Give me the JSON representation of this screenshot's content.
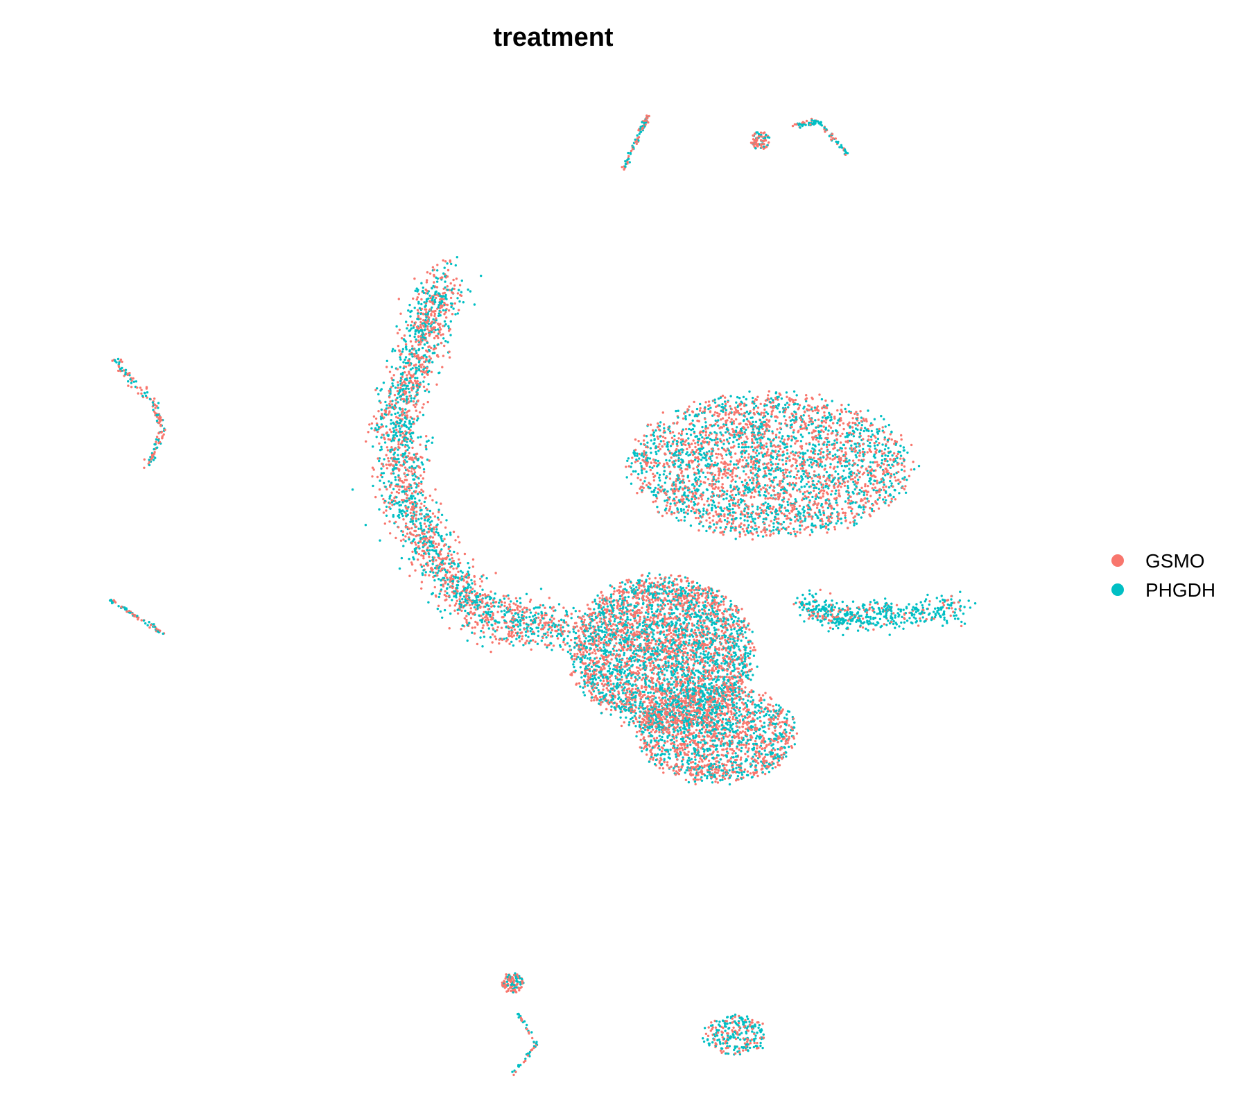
{
  "chart_data": {
    "type": "scatter",
    "title": "treatment",
    "xlabel": "",
    "ylabel": "",
    "axes_visible": false,
    "grid": false,
    "legend_position": "right",
    "xlim": [
      -10,
      10
    ],
    "ylim": [
      -10,
      10
    ],
    "series": [
      {
        "name": "GSMO",
        "color": "#F8766D"
      },
      {
        "name": "PHGDH",
        "color": "#00BFC4"
      }
    ],
    "clusters": [
      {
        "id": "crescent",
        "type": "curve",
        "points": [
          [
            -2.2,
            6.2
          ],
          [
            -2.7,
            4.8
          ],
          [
            -3.2,
            3.2
          ],
          [
            -3.0,
            1.6
          ],
          [
            -2.3,
            0.2
          ],
          [
            -1.3,
            -0.9
          ],
          [
            0.4,
            -1.1
          ]
        ],
        "spread": 0.5,
        "count": 2400,
        "mix": 0.5
      },
      {
        "id": "central-mass",
        "type": "blob",
        "center": [
          2.3,
          -1.6
        ],
        "radius": [
          2.0,
          1.7
        ],
        "count": 3800,
        "mix": 0.52
      },
      {
        "id": "lower-lobe",
        "type": "blob",
        "center": [
          3.4,
          -3.3
        ],
        "radius": [
          1.7,
          1.1
        ],
        "count": 1800,
        "mix": 0.55
      },
      {
        "id": "right-plateau",
        "type": "blob",
        "center": [
          4.5,
          2.3
        ],
        "radius": [
          3.1,
          1.6
        ],
        "count": 3200,
        "mix": 0.5
      },
      {
        "id": "right-arm",
        "type": "curve",
        "points": [
          [
            5.2,
            -0.6
          ],
          [
            6.0,
            -0.9
          ],
          [
            7.0,
            -0.8
          ],
          [
            8.5,
            -0.7
          ]
        ],
        "spread": 0.3,
        "count": 520,
        "mix": 0.2
      },
      {
        "id": "top-streak-1",
        "type": "curve",
        "points": [
          [
            1.5,
            8.5
          ],
          [
            1.8,
            9.2
          ],
          [
            2.0,
            9.6
          ]
        ],
        "spread": 0.05,
        "count": 90,
        "mix": 0.5
      },
      {
        "id": "top-cluster-2",
        "type": "blob",
        "center": [
          4.3,
          9.1
        ],
        "radius": [
          0.22,
          0.2
        ],
        "count": 80,
        "mix": 0.6
      },
      {
        "id": "top-streak-3",
        "type": "curve",
        "points": [
          [
            5.0,
            9.4
          ],
          [
            5.5,
            9.5
          ],
          [
            6.1,
            8.8
          ]
        ],
        "spread": 0.05,
        "count": 80,
        "mix": 0.45
      },
      {
        "id": "left-fork",
        "type": "curve",
        "points": [
          [
            -9.0,
            4.5
          ],
          [
            -8.2,
            3.6
          ],
          [
            -8.0,
            3.0
          ],
          [
            -8.3,
            2.3
          ]
        ],
        "spread": 0.1,
        "count": 150,
        "mix": 0.6
      },
      {
        "id": "left-streak",
        "type": "curve",
        "points": [
          [
            -9.1,
            -0.5
          ],
          [
            -8.0,
            -1.2
          ]
        ],
        "spread": 0.04,
        "count": 60,
        "mix": 0.5
      },
      {
        "id": "bottom-cluster-1",
        "type": "blob",
        "center": [
          -0.8,
          -8.5
        ],
        "radius": [
          0.25,
          0.22
        ],
        "count": 120,
        "mix": 0.7
      },
      {
        "id": "bottom-tail-1",
        "type": "curve",
        "points": [
          [
            -0.7,
            -9.1
          ],
          [
            -0.3,
            -9.8
          ],
          [
            -0.8,
            -10.4
          ]
        ],
        "spread": 0.04,
        "count": 60,
        "mix": 0.3
      },
      {
        "id": "bottom-cluster-2",
        "type": "blob",
        "center": [
          3.8,
          -9.6
        ],
        "radius": [
          0.7,
          0.45
        ],
        "count": 260,
        "mix": 0.35
      }
    ]
  },
  "legend": {
    "items": [
      {
        "label": "GSMO",
        "color": "#F8766D"
      },
      {
        "label": "PHGDH",
        "color": "#00BFC4"
      }
    ]
  }
}
